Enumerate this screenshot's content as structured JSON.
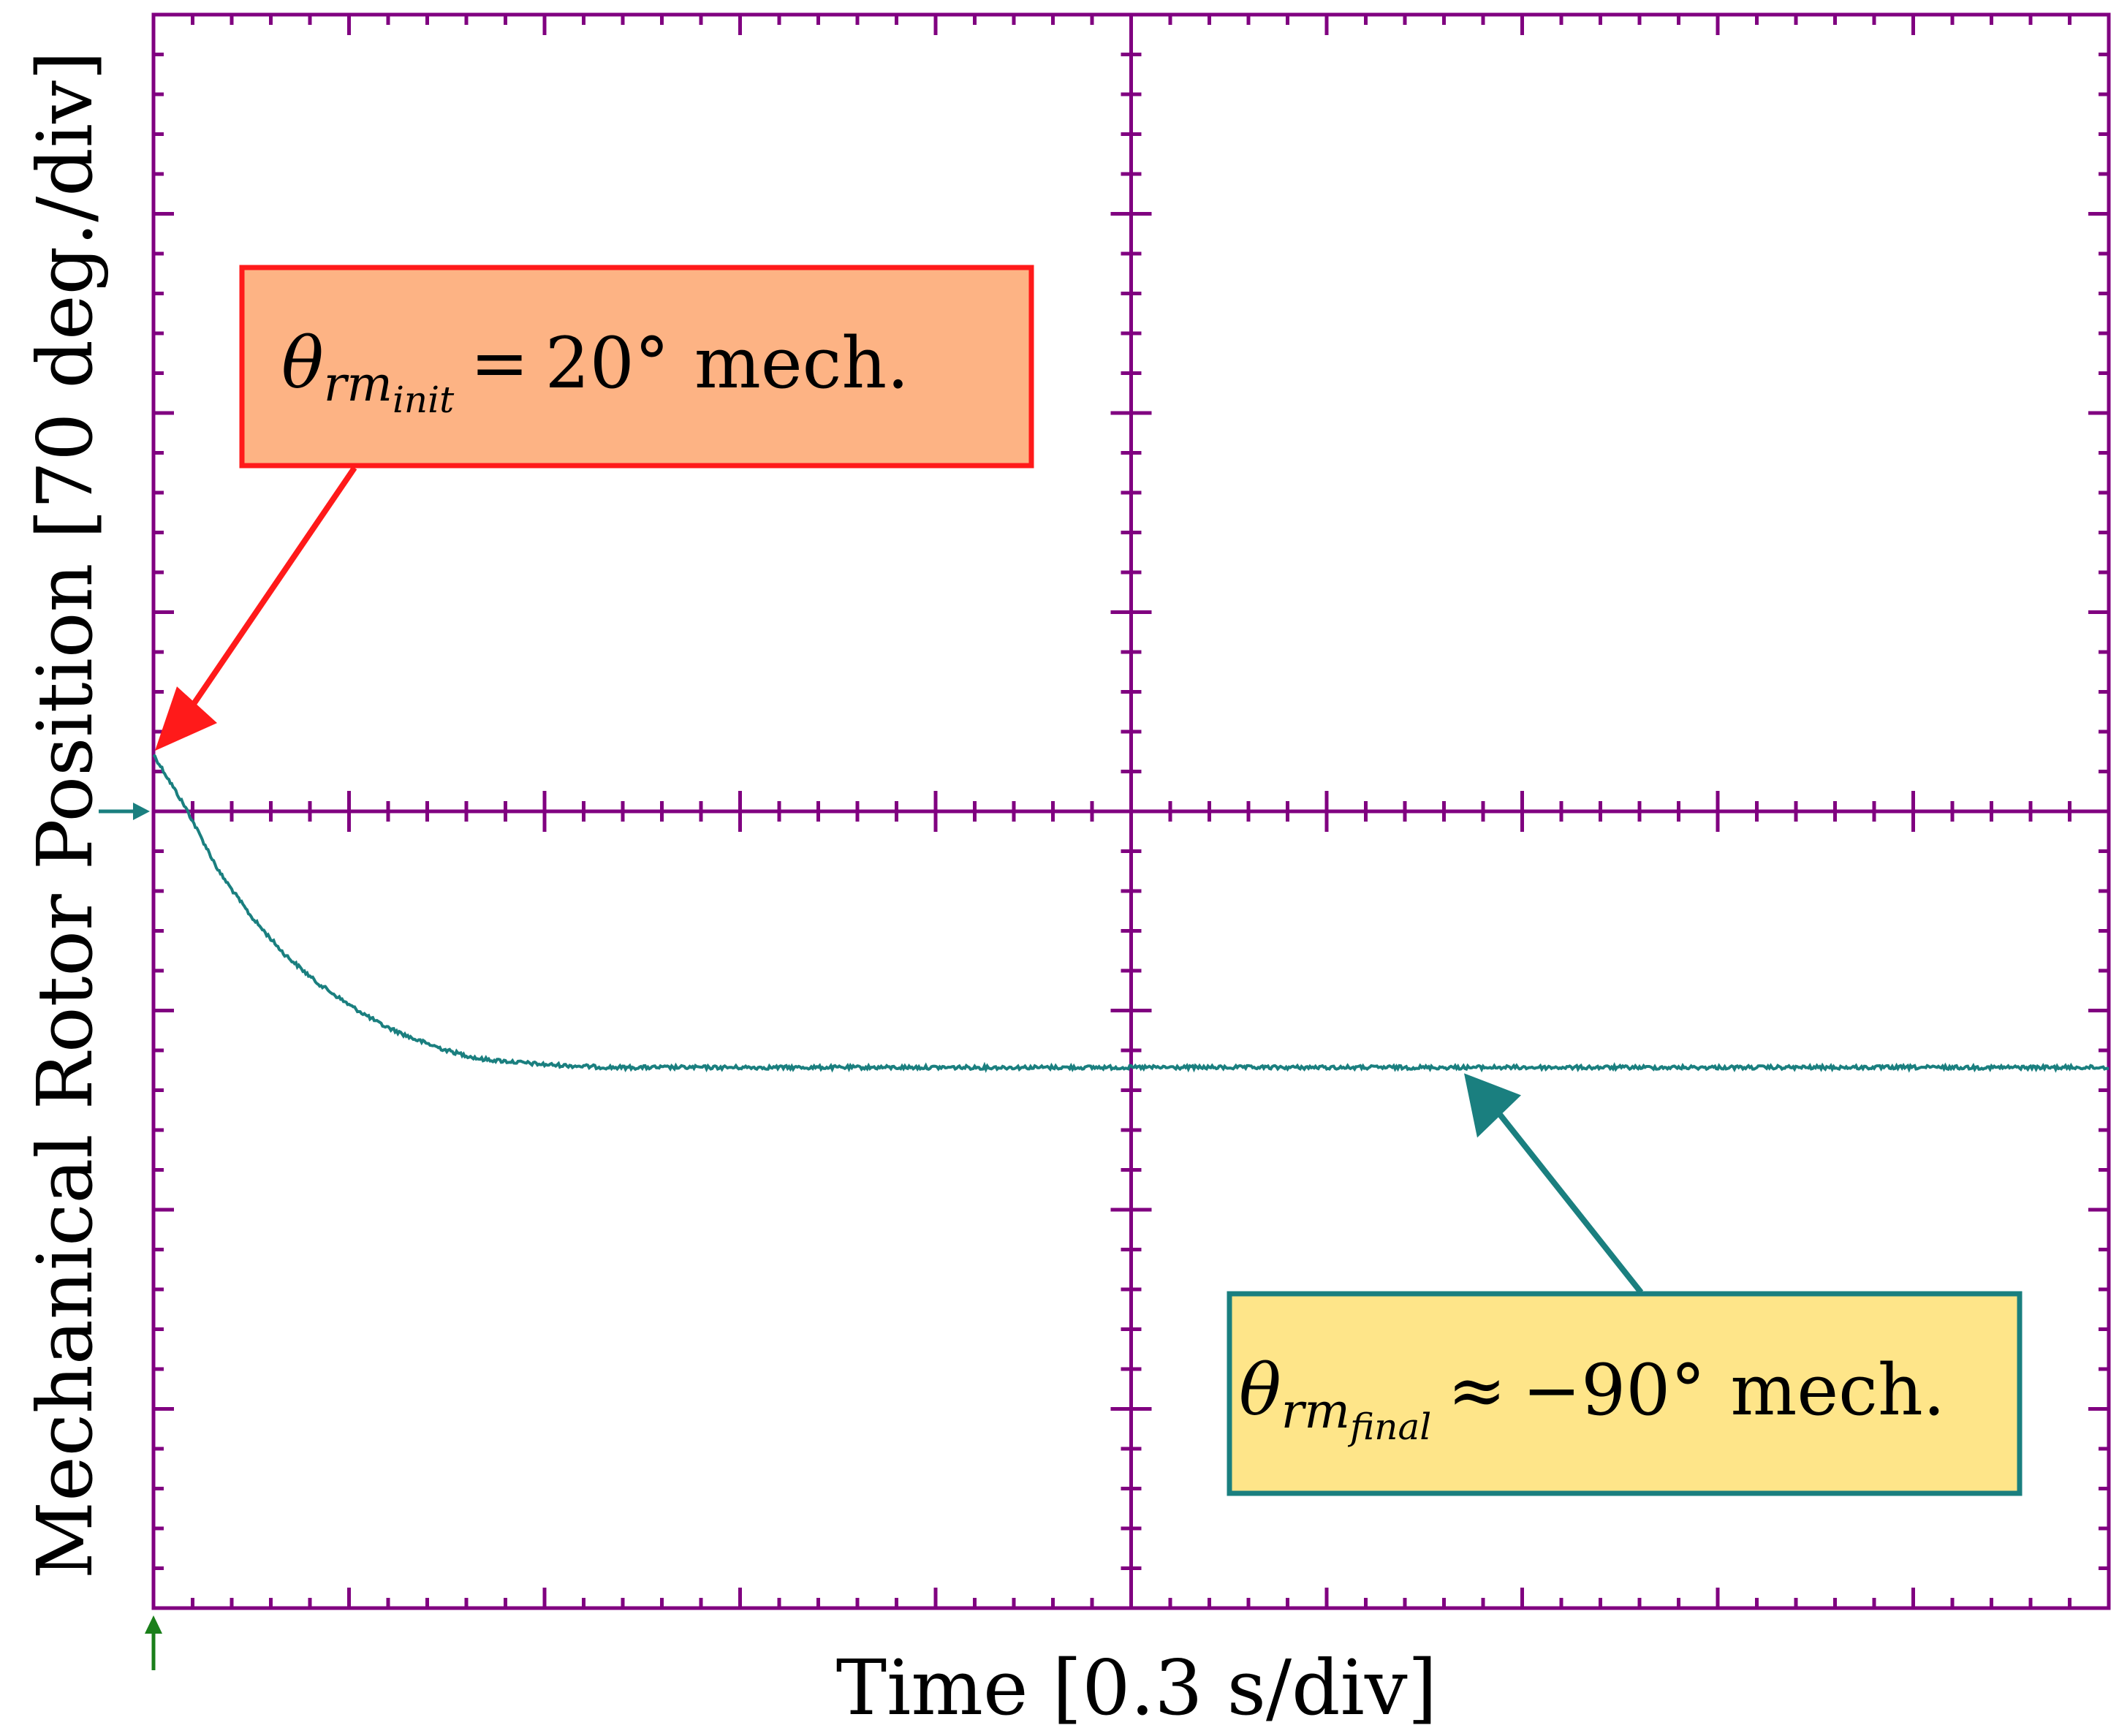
{
  "chart_data": {
    "type": "line",
    "title": "",
    "xlabel": "Time [0.3 s/div]",
    "ylabel": "Mechanical Rotor Position [70 deg./div]",
    "x_divisions": 10,
    "y_divisions": 8,
    "x_units_per_div": 0.3,
    "y_units_per_div": 70,
    "xlim": [
      0,
      3.0
    ],
    "ylim": [
      -280,
      280
    ],
    "grid": "center-cross",
    "series": [
      {
        "name": "Mechanical Rotor Position",
        "color": "#1a7f7f",
        "x": [
          0,
          0.05,
          0.1,
          0.15,
          0.2,
          0.25,
          0.3,
          0.35,
          0.4,
          0.45,
          0.5,
          0.6,
          0.7,
          0.8,
          0.9,
          1.0,
          1.2,
          1.5,
          1.8,
          2.1,
          2.4,
          2.7,
          3.0
        ],
        "y": [
          20,
          1,
          -21,
          -37,
          -50,
          -60,
          -68,
          -75,
          -80,
          -84,
          -87,
          -89,
          -90,
          -90,
          -90,
          -90,
          -90,
          -90,
          -90,
          -90,
          -90,
          -90,
          -90
        ]
      }
    ],
    "annotations": [
      {
        "id": "init",
        "prefix": "θ",
        "subscript": "rm",
        "subsubscript": "init",
        "relation": "=",
        "value": "20°",
        "unit": "mech.",
        "fill": "#fdb384",
        "border": "#ff1a1a",
        "points_to": [
          0,
          20
        ]
      },
      {
        "id": "final",
        "prefix": "θ",
        "subscript": "rm",
        "subsubscript": "final",
        "relation": "≈",
        "value": "−90°",
        "unit": "mech.",
        "fill": "#fee589",
        "border": "#1a7f7f",
        "points_to": [
          1.0,
          -90
        ]
      }
    ]
  },
  "colors": {
    "grid": "#800080",
    "trace": "#1a7f7f",
    "trigger_marker": "#1a7f1a"
  }
}
